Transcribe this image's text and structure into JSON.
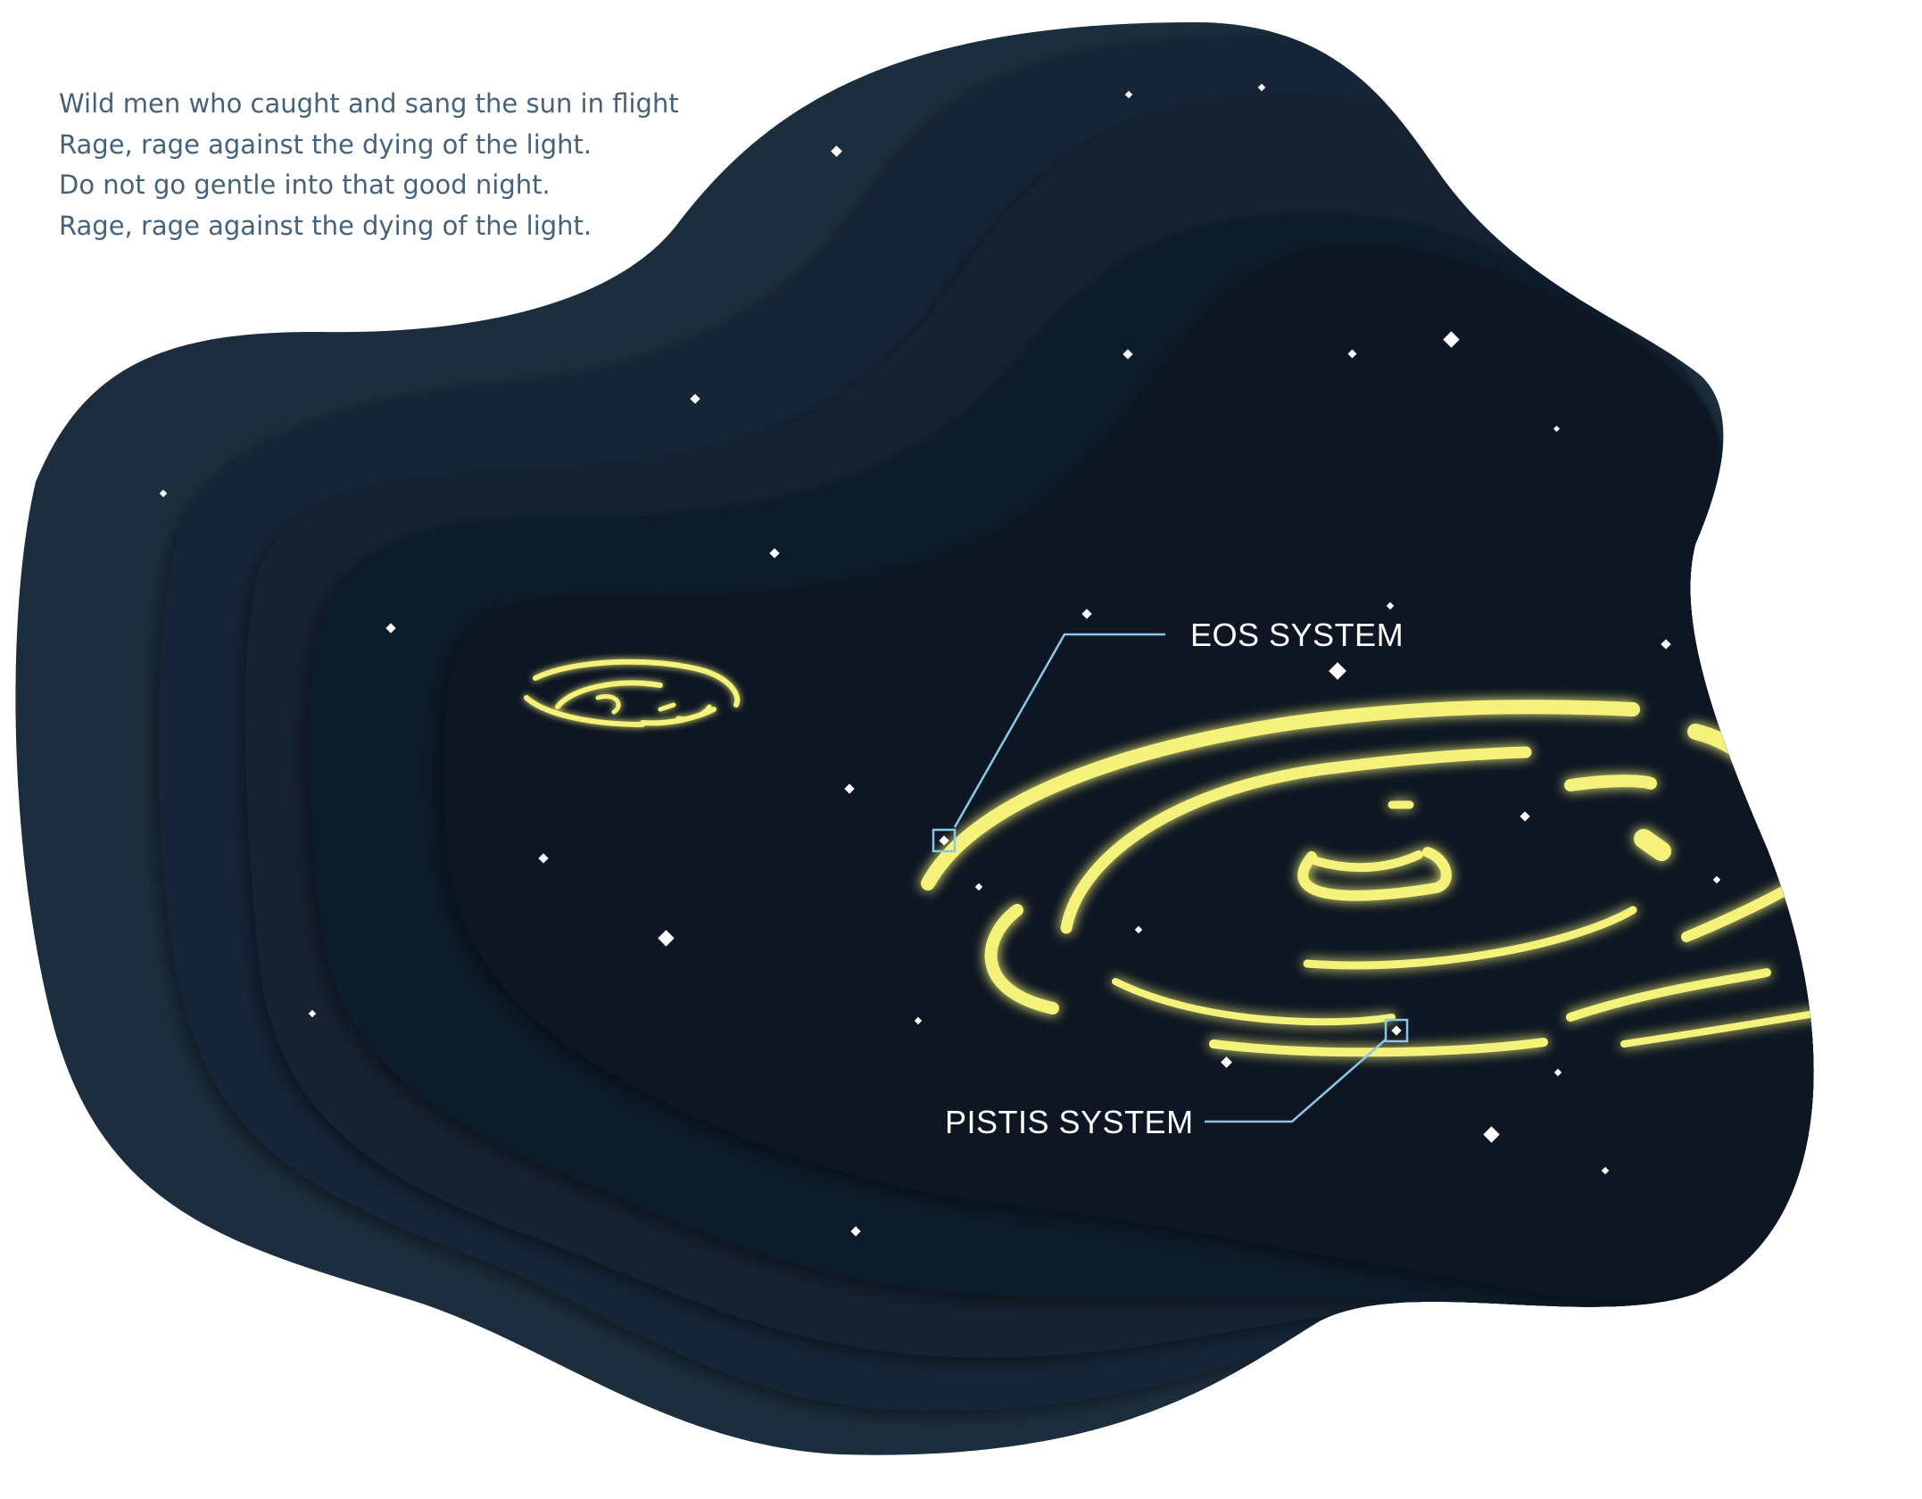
{
  "poem": {
    "lines": [
      "Wild men who caught and sang the sun in flight",
      "Rage, rage against the dying of the light.",
      "Do not go gentle into that good night.",
      "Rage, rage against the dying of the light."
    ]
  },
  "labels": {
    "eos": "EOS SYSTEM",
    "pistis": "PISTIS SYSTEM"
  },
  "colors": {
    "background": "#ffffff",
    "layer_outer": "#1c2e3d",
    "layer_2": "#172838",
    "layer_3": "#122231",
    "layer_4": "#0e1c29",
    "layer_inner": "#081621",
    "galaxy": "#f4f27a",
    "leader": "#8ec6ea",
    "star": "#ffffff",
    "label": "#ffffff",
    "poem_text": "#46627a"
  }
}
